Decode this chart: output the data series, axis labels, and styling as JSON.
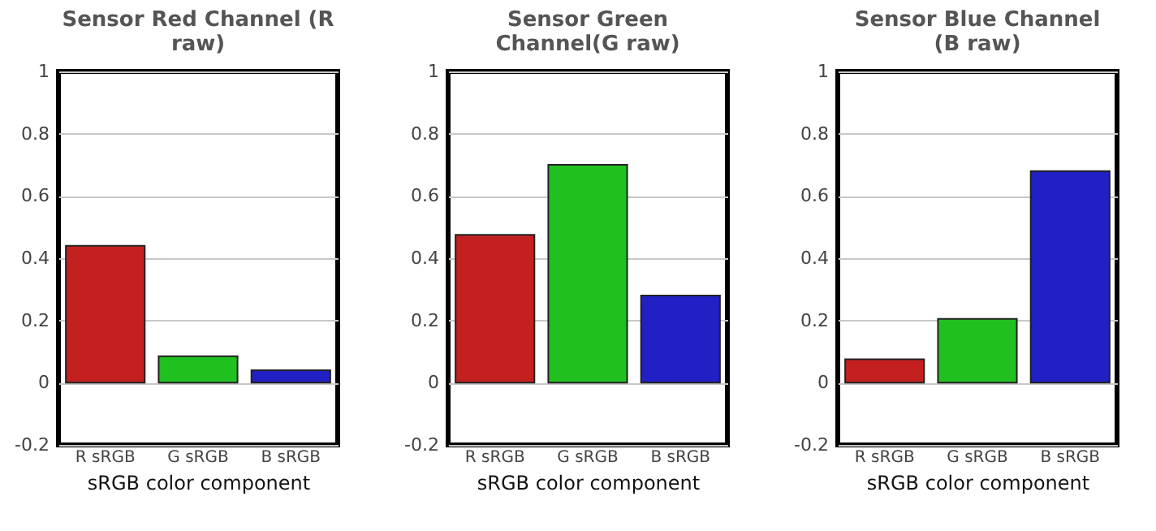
{
  "chart_data": [
    {
      "type": "bar",
      "title": "Sensor Red Channel (R raw)",
      "xlabel": "sRGB color component",
      "categories": [
        "R sRGB",
        "G sRGB",
        "B sRGB"
      ],
      "values": [
        0.44,
        0.085,
        0.04
      ],
      "colors": [
        "#c42020",
        "#20c020",
        "#2020c4"
      ],
      "ylim": [
        -0.2,
        1
      ],
      "yticks": [
        -0.2,
        0,
        0.2,
        0.4,
        0.6,
        0.8,
        1
      ],
      "grid": "y"
    },
    {
      "type": "bar",
      "title": "Sensor Green Channel(G raw)",
      "xlabel": "sRGB color component",
      "categories": [
        "R sRGB",
        "G sRGB",
        "B sRGB"
      ],
      "values": [
        0.475,
        0.7,
        0.28
      ],
      "colors": [
        "#c42020",
        "#20c020",
        "#2020c4"
      ],
      "ylim": [
        -0.2,
        1
      ],
      "yticks": [
        -0.2,
        0,
        0.2,
        0.4,
        0.6,
        0.8,
        1
      ],
      "grid": "y"
    },
    {
      "type": "bar",
      "title": "Sensor Blue Channel (B raw)",
      "xlabel": "sRGB color component",
      "categories": [
        "R sRGB",
        "G sRGB",
        "B sRGB"
      ],
      "values": [
        0.075,
        0.205,
        0.68
      ],
      "colors": [
        "#c42020",
        "#20c020",
        "#2020c4"
      ],
      "ylim": [
        -0.2,
        1
      ],
      "yticks": [
        -0.2,
        0,
        0.2,
        0.4,
        0.6,
        0.8,
        1
      ],
      "grid": "y"
    }
  ]
}
